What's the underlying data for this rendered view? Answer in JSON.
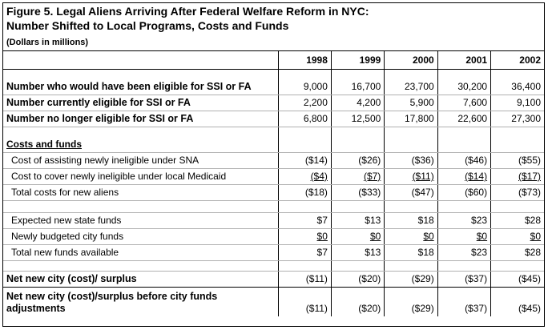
{
  "title": {
    "line1": "Figure 5.  Legal Aliens Arriving After Federal Welfare Reform in NYC:",
    "line2": "Number Shifted to Local Programs, Costs and Funds",
    "unit": "(Dollars in millions)"
  },
  "years": [
    "1998",
    "1999",
    "2000",
    "2001",
    "2002"
  ],
  "rows": {
    "eligible": {
      "label": "Number who would have been eligible for SSI or FA",
      "values": [
        "9,000",
        "16,700",
        "23,700",
        "30,200",
        "36,400"
      ]
    },
    "current": {
      "label": "Number currently eligible for SSI or FA",
      "values": [
        "2,200",
        "4,200",
        "5,900",
        "7,600",
        "9,100"
      ]
    },
    "no_longer": {
      "label": "Number no longer eligible for SSI or FA",
      "values": [
        "6,800",
        "12,500",
        "17,800",
        "22,600",
        "27,300"
      ]
    },
    "costs_heading": "Costs and funds",
    "sna": {
      "label": "Cost of assisting newly ineligible under SNA",
      "values": [
        "($14)",
        "($26)",
        "($36)",
        "($46)",
        "($55)"
      ]
    },
    "medicaid": {
      "label": "Cost to cover newly ineligible under local Medicaid",
      "values": [
        "($4)",
        "($7)",
        "($11)",
        "($14)",
        "($17)"
      ]
    },
    "total_costs": {
      "label": "Total costs for new aliens",
      "values": [
        "($18)",
        "($33)",
        "($47)",
        "($60)",
        "($73)"
      ]
    },
    "state_funds": {
      "label": "Expected new state funds",
      "values": [
        "$7",
        "$13",
        "$18",
        "$23",
        "$28"
      ]
    },
    "city_funds": {
      "label": "Newly budgeted city funds",
      "values": [
        "$0",
        "$0",
        "$0",
        "$0",
        "$0"
      ]
    },
    "total_funds": {
      "label": "Total new funds available",
      "values": [
        "$7",
        "$13",
        "$18",
        "$23",
        "$28"
      ]
    },
    "net": {
      "label": "Net new city (cost)/ surplus",
      "values": [
        "($11)",
        "($20)",
        "($29)",
        "($37)",
        "($45)"
      ]
    },
    "net_before": {
      "label": "Net new city (cost)/surplus before city funds adjustments",
      "values": [
        "($11)",
        "($20)",
        "($29)",
        "($37)",
        "($45)"
      ]
    }
  }
}
